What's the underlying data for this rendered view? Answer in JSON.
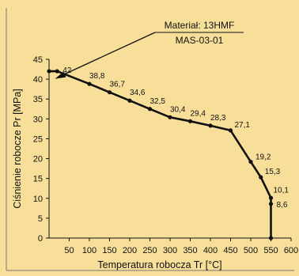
{
  "chart_data": {
    "type": "line",
    "title": "",
    "xlabel": "Temperatura robocza Tr [°C]",
    "ylabel": "Ciśnienie robocze Pr [MPa]",
    "xlim": [
      0,
      600
    ],
    "ylim": [
      0,
      45
    ],
    "x_ticks": [
      "50",
      "100",
      "150",
      "200",
      "250",
      "300",
      "350",
      "400",
      "450",
      "500",
      "550",
      "600"
    ],
    "y_ticks": [
      "0",
      "5",
      "10",
      "15",
      "20",
      "25",
      "30",
      "35",
      "40",
      "45"
    ],
    "grid": false,
    "series": [
      {
        "x": [
          0,
          20,
          100,
          150,
          200,
          250,
          300,
          350,
          400,
          450,
          500,
          525,
          550,
          550,
          550
        ],
        "values": [
          42,
          42,
          38.8,
          36.7,
          34.6,
          32.5,
          30.4,
          29.4,
          28.3,
          27.1,
          19.2,
          15.3,
          10.1,
          8.6,
          0
        ],
        "labels": [
          "",
          "42",
          "38,8",
          "36,7",
          "34,6",
          "32,5",
          "30,4",
          "29,4",
          "28,3",
          "27,1",
          "19,2",
          "15,3",
          "10,1",
          "8,6",
          ""
        ]
      }
    ],
    "annotation": {
      "line1": "Materiał: 13HMF",
      "line2": "MAS-03-01",
      "points_to_x": 50
    },
    "colors": {
      "background": "#f7df9a",
      "line": "#111111"
    }
  }
}
